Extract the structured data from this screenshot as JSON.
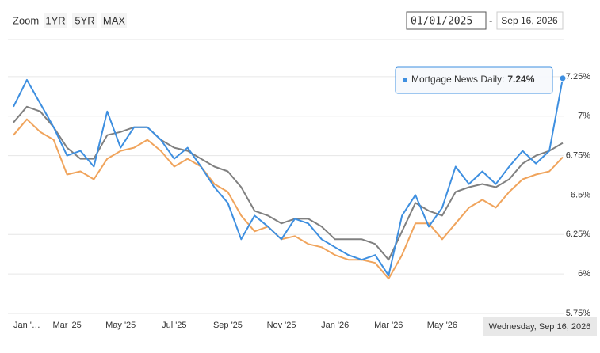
{
  "toolbar": {
    "zoom_label": "Zoom",
    "buttons": [
      "1YR",
      "5YR",
      "MAX"
    ],
    "from": "01/01/2025",
    "separator": "-",
    "to": "Sep 16, 2026"
  },
  "chart_data": {
    "type": "line",
    "categories": [
      "Jan '…",
      null,
      null,
      null,
      "Mar '25",
      null,
      null,
      null,
      "May '25",
      null,
      null,
      null,
      "Jul '25",
      null,
      null,
      null,
      "Sep '25",
      null,
      null,
      null,
      "Nov '25",
      null,
      null,
      null,
      "Jan '26",
      null,
      null,
      null,
      "Mar '26",
      null,
      null,
      null,
      "May '26",
      null,
      null,
      null,
      null,
      null,
      null,
      null,
      null,
      null
    ],
    "series": [
      {
        "name": "Mortgage News Daily",
        "color": "#3e8fe0",
        "values": [
          7.06,
          7.23,
          7.08,
          6.93,
          6.75,
          6.78,
          6.68,
          7.03,
          6.8,
          6.93,
          6.93,
          6.85,
          6.73,
          6.8,
          6.68,
          6.55,
          6.45,
          6.22,
          6.37,
          6.3,
          6.22,
          6.35,
          6.32,
          6.22,
          6.17,
          6.12,
          6.09,
          6.12,
          5.99,
          6.37,
          6.5,
          6.3,
          6.42,
          6.68,
          6.57,
          6.65,
          6.57,
          6.68,
          6.78,
          6.7,
          6.78,
          7.24
        ]
      },
      {
        "color": "#808080",
        "values": [
          6.96,
          7.06,
          7.03,
          6.93,
          6.8,
          6.73,
          6.73,
          6.88,
          6.9,
          6.93,
          6.93,
          6.85,
          6.8,
          6.78,
          6.73,
          6.68,
          6.65,
          6.55,
          6.4,
          6.37,
          6.32,
          6.35,
          6.35,
          6.3,
          6.22,
          6.22,
          6.22,
          6.19,
          6.09,
          6.27,
          6.45,
          6.4,
          6.37,
          6.52,
          6.55,
          6.57,
          6.55,
          6.6,
          6.7,
          6.75,
          6.78,
          6.83
        ]
      },
      {
        "color": "#f0a45c",
        "values": [
          6.88,
          6.98,
          6.9,
          6.85,
          6.63,
          6.65,
          6.6,
          6.73,
          6.78,
          6.8,
          6.85,
          6.78,
          6.68,
          6.73,
          6.68,
          6.57,
          6.52,
          6.37,
          6.27,
          6.3,
          6.22,
          6.24,
          6.19,
          6.17,
          6.12,
          6.09,
          6.09,
          6.07,
          5.97,
          6.12,
          6.32,
          6.32,
          6.22,
          6.32,
          6.42,
          6.47,
          6.42,
          6.52,
          6.6,
          6.63,
          6.65,
          6.74
        ]
      }
    ],
    "ylim": [
      5.73,
      7.46
    ],
    "yticks": [
      {
        "value": 5.75,
        "label": "5.75%"
      },
      {
        "value": 6,
        "label": "6%"
      },
      {
        "value": 6.25,
        "label": "6.25%"
      },
      {
        "value": 6.5,
        "label": "6.5%"
      },
      {
        "value": 6.75,
        "label": "6.75%"
      },
      {
        "value": 7,
        "label": "7%"
      },
      {
        "value": 7.25,
        "label": "7.25%"
      }
    ],
    "grid": true,
    "tooltip": {
      "label": "Mortgage News Daily:",
      "value_label": "7.24%"
    },
    "crosshair_label": "Wednesday, Sep 16, 2026"
  }
}
